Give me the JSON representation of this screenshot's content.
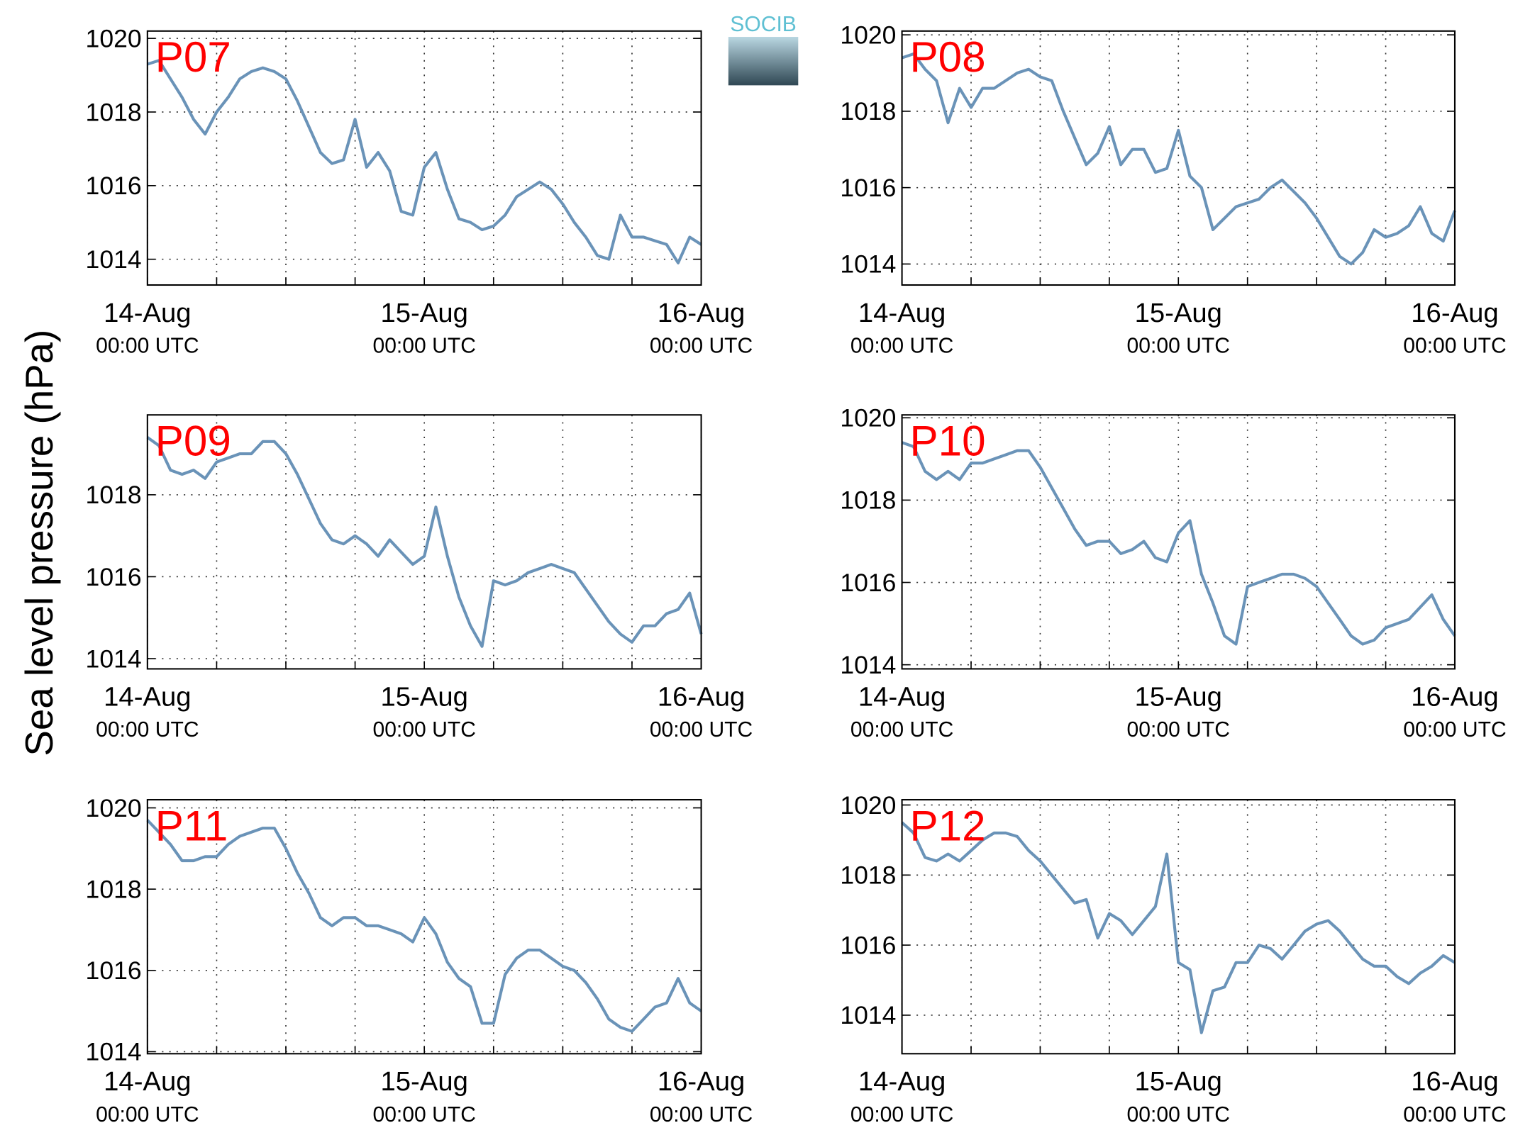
{
  "ylabel": "Sea level pressure (hPa)",
  "logo": "SOCIB",
  "chart_data": [
    {
      "type": "line",
      "label": "P07",
      "color": "#6a93b8",
      "grid": true,
      "x": [
        0,
        1,
        2,
        3,
        4,
        5,
        6,
        7,
        8,
        9,
        10,
        11,
        12,
        13,
        14,
        15,
        16,
        17,
        18,
        19,
        20,
        21,
        22,
        23,
        24,
        25,
        26,
        27,
        28,
        29,
        30,
        31,
        32,
        33,
        34,
        35,
        36,
        37,
        38,
        39,
        40,
        41,
        42,
        43,
        44,
        45,
        46,
        47,
        48
      ],
      "values": [
        1019.3,
        1019.4,
        1018.9,
        1018.4,
        1017.8,
        1017.4,
        1018.0,
        1018.4,
        1018.9,
        1019.1,
        1019.2,
        1019.1,
        1018.9,
        1018.3,
        1017.6,
        1016.9,
        1016.6,
        1016.7,
        1017.8,
        1016.5,
        1016.9,
        1016.4,
        1015.3,
        1015.2,
        1016.5,
        1016.9,
        1015.9,
        1015.1,
        1015.0,
        1014.8,
        1014.9,
        1015.2,
        1015.7,
        1015.9,
        1016.1,
        1015.9,
        1015.5,
        1015.0,
        1014.6,
        1014.1,
        1014.0,
        1015.2,
        1014.6,
        1014.6,
        1014.5,
        1014.4,
        1013.9,
        1014.6,
        1014.4
      ],
      "xlim": [
        0,
        48
      ],
      "xticks": [
        {
          "value": 0,
          "label": "14-Aug",
          "sublabel": "00:00 UTC"
        },
        {
          "value": 24,
          "label": "15-Aug",
          "sublabel": "00:00 UTC"
        },
        {
          "value": 48,
          "label": "16-Aug",
          "sublabel": "00:00 UTC"
        }
      ],
      "xminor": [
        6,
        12,
        18,
        30,
        36,
        42
      ],
      "ylim": [
        1013.3,
        1020.2
      ],
      "yticks": [
        1014,
        1016,
        1018,
        1020
      ]
    },
    {
      "type": "line",
      "label": "P08",
      "color": "#6a93b8",
      "grid": true,
      "x": [
        0,
        1,
        2,
        3,
        4,
        5,
        6,
        7,
        8,
        9,
        10,
        11,
        12,
        13,
        14,
        15,
        16,
        17,
        18,
        19,
        20,
        21,
        22,
        23,
        24,
        25,
        26,
        27,
        28,
        29,
        30,
        31,
        32,
        33,
        34,
        35,
        36,
        37,
        38,
        39,
        40,
        41,
        42,
        43,
        44,
        45,
        46,
        47,
        48
      ],
      "values": [
        1019.4,
        1019.5,
        1019.1,
        1018.8,
        1017.7,
        1018.6,
        1018.1,
        1018.6,
        1018.6,
        1018.8,
        1019.0,
        1019.1,
        1018.9,
        1018.8,
        1018.0,
        1017.3,
        1016.6,
        1016.9,
        1017.6,
        1016.6,
        1017.0,
        1017.0,
        1016.4,
        1016.5,
        1017.5,
        1016.3,
        1016.0,
        1014.9,
        1015.2,
        1015.5,
        1015.6,
        1015.7,
        1016.0,
        1016.2,
        1015.9,
        1015.6,
        1015.2,
        1014.7,
        1014.2,
        1014.0,
        1014.3,
        1014.9,
        1014.7,
        1014.8,
        1015.0,
        1015.5,
        1014.8,
        1014.6,
        1015.4
      ],
      "xlim": [
        0,
        48
      ],
      "xticks": [
        {
          "value": 0,
          "label": "14-Aug",
          "sublabel": "00:00 UTC"
        },
        {
          "value": 24,
          "label": "15-Aug",
          "sublabel": "00:00 UTC"
        },
        {
          "value": 48,
          "label": "16-Aug",
          "sublabel": "00:00 UTC"
        }
      ],
      "xminor": [
        6,
        12,
        18,
        30,
        36,
        42
      ],
      "ylim": [
        1013.45,
        1020.1
      ],
      "yticks": [
        1014,
        1016,
        1018,
        1020
      ]
    },
    {
      "type": "line",
      "label": "P09",
      "color": "#6a93b8",
      "grid": true,
      "x": [
        0,
        1,
        2,
        3,
        4,
        5,
        6,
        7,
        8,
        9,
        10,
        11,
        12,
        13,
        14,
        15,
        16,
        17,
        18,
        19,
        20,
        21,
        22,
        23,
        24,
        25,
        26,
        27,
        28,
        29,
        30,
        31,
        32,
        33,
        34,
        35,
        36,
        37,
        38,
        39,
        40,
        41,
        42,
        43,
        44,
        45,
        46,
        47,
        48
      ],
      "values": [
        1019.4,
        1019.2,
        1018.6,
        1018.5,
        1018.6,
        1018.4,
        1018.8,
        1018.9,
        1019.0,
        1019.0,
        1019.3,
        1019.3,
        1019.0,
        1018.5,
        1017.9,
        1017.3,
        1016.9,
        1016.8,
        1017.0,
        1016.8,
        1016.5,
        1016.9,
        1016.6,
        1016.3,
        1016.5,
        1017.7,
        1016.5,
        1015.5,
        1014.8,
        1014.3,
        1015.9,
        1015.8,
        1015.9,
        1016.1,
        1016.2,
        1016.3,
        1016.2,
        1016.1,
        1015.7,
        1015.3,
        1014.9,
        1014.6,
        1014.4,
        1014.8,
        1014.8,
        1015.1,
        1015.2,
        1015.6,
        1014.6
      ],
      "xlim": [
        0,
        48
      ],
      "xticks": [
        {
          "value": 0,
          "label": "14-Aug",
          "sublabel": "00:00 UTC"
        },
        {
          "value": 24,
          "label": "15-Aug",
          "sublabel": "00:00 UTC"
        },
        {
          "value": 48,
          "label": "16-Aug",
          "sublabel": "00:00 UTC"
        }
      ],
      "xminor": [
        6,
        12,
        18,
        30,
        36,
        42
      ],
      "ylim": [
        1013.75,
        1019.95
      ],
      "yticks": [
        1014,
        1016,
        1018
      ]
    },
    {
      "type": "line",
      "label": "P10",
      "color": "#6a93b8",
      "grid": true,
      "x": [
        0,
        1,
        2,
        3,
        4,
        5,
        6,
        7,
        8,
        9,
        10,
        11,
        12,
        13,
        14,
        15,
        16,
        17,
        18,
        19,
        20,
        21,
        22,
        23,
        24,
        25,
        26,
        27,
        28,
        29,
        30,
        31,
        32,
        33,
        34,
        35,
        36,
        37,
        38,
        39,
        40,
        41,
        42,
        43,
        44,
        45,
        46,
        47,
        48
      ],
      "values": [
        1019.4,
        1019.3,
        1018.7,
        1018.5,
        1018.7,
        1018.5,
        1018.9,
        1018.9,
        1019.0,
        1019.1,
        1019.2,
        1019.2,
        1018.8,
        1018.3,
        1017.8,
        1017.3,
        1016.9,
        1017.0,
        1017.0,
        1016.7,
        1016.8,
        1017.0,
        1016.6,
        1016.5,
        1017.2,
        1017.5,
        1016.2,
        1015.5,
        1014.7,
        1014.5,
        1015.9,
        1016.0,
        1016.1,
        1016.2,
        1016.2,
        1016.1,
        1015.9,
        1015.5,
        1015.1,
        1014.7,
        1014.5,
        1014.6,
        1014.9,
        1015.0,
        1015.1,
        1015.4,
        1015.7,
        1015.1,
        1014.7
      ],
      "xlim": [
        0,
        48
      ],
      "xticks": [
        {
          "value": 0,
          "label": "14-Aug",
          "sublabel": "00:00 UTC"
        },
        {
          "value": 24,
          "label": "15-Aug",
          "sublabel": "00:00 UTC"
        },
        {
          "value": 48,
          "label": "16-Aug",
          "sublabel": "00:00 UTC"
        }
      ],
      "xminor": [
        6,
        12,
        18,
        30,
        36,
        42
      ],
      "ylim": [
        1013.9,
        1020.07
      ],
      "yticks": [
        1014,
        1016,
        1018,
        1020
      ]
    },
    {
      "type": "line",
      "label": "P11",
      "color": "#6a93b8",
      "grid": true,
      "x": [
        0,
        1,
        2,
        3,
        4,
        5,
        6,
        7,
        8,
        9,
        10,
        11,
        12,
        13,
        14,
        15,
        16,
        17,
        18,
        19,
        20,
        21,
        22,
        23,
        24,
        25,
        26,
        27,
        28,
        29,
        30,
        31,
        32,
        33,
        34,
        35,
        36,
        37,
        38,
        39,
        40,
        41,
        42,
        43,
        44,
        45,
        46,
        47,
        48
      ],
      "values": [
        1019.7,
        1019.4,
        1019.1,
        1018.7,
        1018.7,
        1018.8,
        1018.8,
        1019.1,
        1019.3,
        1019.4,
        1019.5,
        1019.5,
        1019.0,
        1018.4,
        1017.9,
        1017.3,
        1017.1,
        1017.3,
        1017.3,
        1017.1,
        1017.1,
        1017.0,
        1016.9,
        1016.7,
        1017.3,
        1016.9,
        1016.2,
        1015.8,
        1015.6,
        1014.7,
        1014.7,
        1015.9,
        1016.3,
        1016.5,
        1016.5,
        1016.3,
        1016.1,
        1016.0,
        1015.7,
        1015.3,
        1014.8,
        1014.6,
        1014.5,
        1014.8,
        1015.1,
        1015.2,
        1015.8,
        1015.2,
        1015.0
      ],
      "xlim": [
        0,
        48
      ],
      "xticks": [
        {
          "value": 0,
          "label": "14-Aug",
          "sublabel": "00:00 UTC"
        },
        {
          "value": 24,
          "label": "15-Aug",
          "sublabel": "00:00 UTC"
        },
        {
          "value": 48,
          "label": "16-Aug",
          "sublabel": "00:00 UTC"
        }
      ],
      "xminor": [
        6,
        12,
        18,
        30,
        36,
        42
      ],
      "ylim": [
        1013.95,
        1020.2
      ],
      "yticks": [
        1014,
        1016,
        1018,
        1020
      ]
    },
    {
      "type": "line",
      "label": "P12",
      "color": "#6a93b8",
      "grid": true,
      "x": [
        0,
        1,
        2,
        3,
        4,
        5,
        6,
        7,
        8,
        9,
        10,
        11,
        12,
        13,
        14,
        15,
        16,
        17,
        18,
        19,
        20,
        21,
        22,
        23,
        24,
        25,
        26,
        27,
        28,
        29,
        30,
        31,
        32,
        33,
        34,
        35,
        36,
        37,
        38,
        39,
        40,
        41,
        42,
        43,
        44,
        45,
        46,
        47,
        48
      ],
      "values": [
        1019.5,
        1019.2,
        1018.5,
        1018.4,
        1018.6,
        1018.4,
        1018.7,
        1019.0,
        1019.2,
        1019.2,
        1019.1,
        1018.7,
        1018.4,
        1018.0,
        1017.6,
        1017.2,
        1017.3,
        1016.2,
        1016.9,
        1016.7,
        1016.3,
        1016.7,
        1017.1,
        1018.6,
        1015.5,
        1015.3,
        1013.5,
        1014.7,
        1014.8,
        1015.5,
        1015.5,
        1016.0,
        1015.9,
        1015.6,
        1016.0,
        1016.4,
        1016.6,
        1016.7,
        1016.4,
        1016.0,
        1015.6,
        1015.4,
        1015.4,
        1015.1,
        1014.9,
        1015.2,
        1015.4,
        1015.7,
        1015.5
      ],
      "xlim": [
        0,
        48
      ],
      "xticks": [
        {
          "value": 0,
          "label": "14-Aug",
          "sublabel": "00:00 UTC"
        },
        {
          "value": 24,
          "label": "15-Aug",
          "sublabel": "00:00 UTC"
        },
        {
          "value": 48,
          "label": "16-Aug",
          "sublabel": "00:00 UTC"
        }
      ],
      "xminor": [
        6,
        12,
        18,
        30,
        36,
        42
      ],
      "ylim": [
        1012.9,
        1020.15
      ],
      "yticks": [
        1014,
        1016,
        1018,
        1020
      ]
    }
  ]
}
